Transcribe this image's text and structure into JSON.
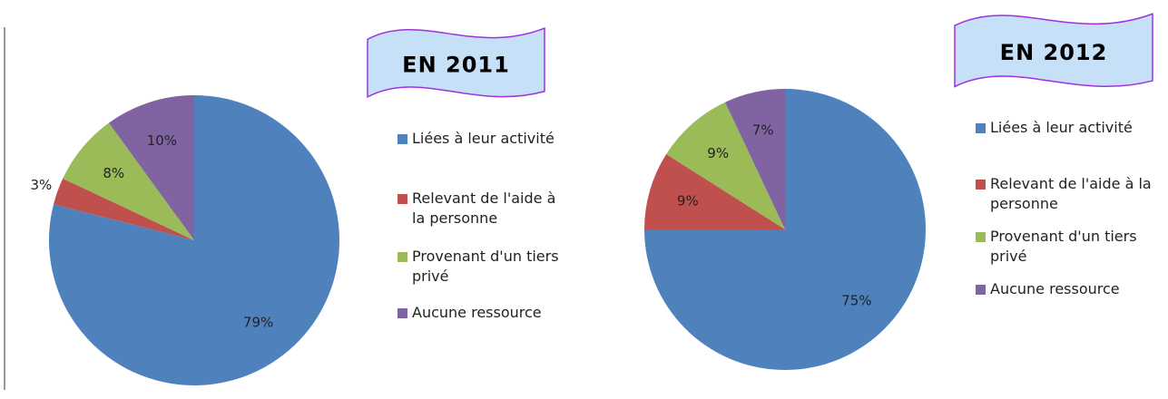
{
  "chart_data": [
    {
      "type": "pie",
      "title": "EN 2011",
      "categories": [
        "Liées à leur activité",
        "Relevant de l'aide à la personne",
        "Provenant d'un tiers privé",
        "Aucune ressource"
      ],
      "values": [
        79,
        3,
        8,
        10
      ],
      "value_labels": [
        "79%",
        "3%",
        "8%",
        "10%"
      ],
      "colors": [
        "#4f81bd",
        "#c0504d",
        "#9bbb59",
        "#8064a2"
      ]
    },
    {
      "type": "pie",
      "title": "EN 2012",
      "categories": [
        "Liées à leur activité",
        "Relevant de l'aide à la personne",
        "Provenant d'un tiers privé",
        "Aucune ressource"
      ],
      "values": [
        75,
        9,
        9,
        7
      ],
      "value_labels": [
        "75%",
        "9%",
        "9%",
        "7%"
      ],
      "colors": [
        "#4f81bd",
        "#c0504d",
        "#9bbb59",
        "#8064a2"
      ]
    }
  ]
}
